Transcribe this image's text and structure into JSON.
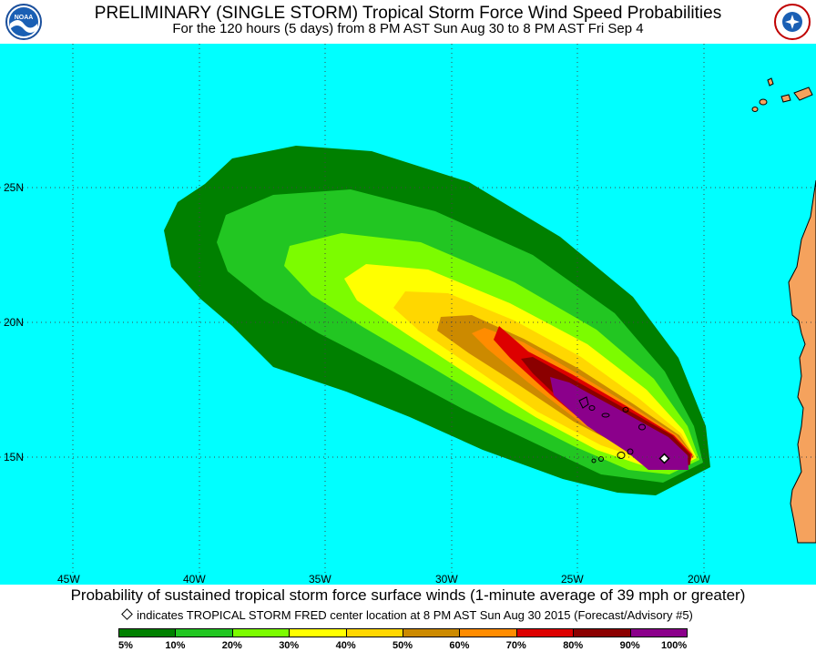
{
  "header": {
    "title": "PRELIMINARY (SINGLE STORM) Tropical Storm Force Wind Speed Probabilities",
    "subtitle": "For the 120 hours (5 days) from 8 PM AST Sun Aug 30 to 8 PM AST Fri Sep 4",
    "left_logo_text": "NOAA",
    "right_logo_text": "NATIONAL WEATHER SERVICE"
  },
  "map": {
    "ocean_color": "#00ffff",
    "land_color": "#f5a25d",
    "lat_labels": [
      "25N",
      "20N",
      "15N"
    ],
    "lon_labels": [
      "45W",
      "40W",
      "35W",
      "30W",
      "25W",
      "20W"
    ],
    "storm_center": {
      "lon": -21.5,
      "lat": 14.9
    }
  },
  "footer": {
    "caption": "Probability of sustained tropical storm force surface winds (1-minute average of 39 mph or greater)",
    "note": "indicates TROPICAL STORM FRED center location at 8 PM AST Sun Aug 30 2015 (Forecast/Advisory #5)"
  },
  "legend": {
    "colors": [
      "#008000",
      "#22c622",
      "#7cfc00",
      "#ffff00",
      "#ffd700",
      "#cc8a00",
      "#ff8c00",
      "#dd0000",
      "#8b0000",
      "#8b008b"
    ],
    "labels": [
      "5%",
      "10%",
      "20%",
      "30%",
      "40%",
      "50%",
      "60%",
      "70%",
      "80%",
      "90%",
      "100%"
    ]
  }
}
